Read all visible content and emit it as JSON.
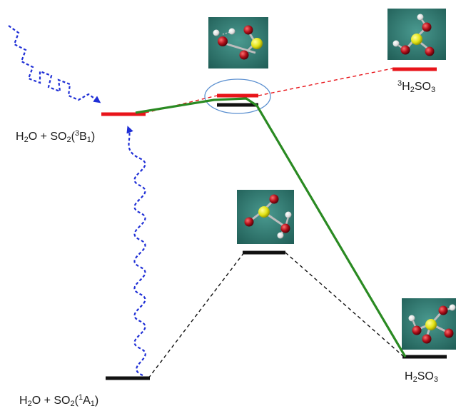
{
  "colors": {
    "triplet_level": "#e8141a",
    "singlet_level": "#111111",
    "reaction_path": "#2a8a22",
    "excitation_arrow": "#1f2fd6",
    "dashed_triplet_path": "#e8141a",
    "dashed_singlet_path": "#111111",
    "highlight_ellipse": "#5a8fd0",
    "molecule_panel_bg": "#2f7b72",
    "sulfur_atom": "#e8e818",
    "oxygen_atom": "#b0101a",
    "hydrogen_atom": "#eeeeee"
  },
  "icons": {
    "molecule_images": "ball-and-stick-molecule",
    "incoming_photon": "wavy-arrow",
    "excitation": "wavy-arrow"
  },
  "labels": {
    "reactants_triplet": {
      "a": "H",
      "a_sub": "2",
      "b": "O + SO",
      "b_sub": "2",
      "c": "(",
      "c_sup": "3",
      "d": "B",
      "d_sub": "1",
      "e": ")"
    },
    "reactants_singlet": {
      "a": "H",
      "a_sub": "2",
      "b": "O + SO",
      "b_sub": "2",
      "c": "(",
      "c_sup": "1",
      "d": "A",
      "d_sub": "1",
      "e": ")"
    },
    "triplet_product": {
      "pre_sup": "3",
      "a": "H",
      "a_sub": "2",
      "b": "SO",
      "b_sub": "3"
    },
    "singlet_product": {
      "a": "H",
      "a_sub": "2",
      "b": "SO",
      "b_sub": "3"
    }
  }
}
